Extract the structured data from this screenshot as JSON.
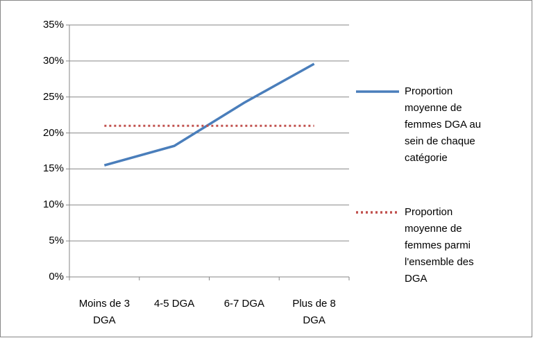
{
  "chart_data": {
    "type": "line",
    "categories": [
      "Moins de 3 DGA",
      "4-5 DGA",
      "6-7 DGA",
      "Plus de 8 DGA"
    ],
    "series": [
      {
        "name": "Proportion moyenne de femmes DGA au sein de chaque catégorie",
        "color": "#4a7ebb",
        "linestyle": "solid",
        "values": [
          15.5,
          18.2,
          24.2,
          29.6
        ]
      },
      {
        "name": "Proportion moyenne de femmes parmi l'ensemble des DGA",
        "color": "#c0504d",
        "linestyle": "dotted",
        "values": [
          21,
          21,
          21,
          21
        ]
      }
    ],
    "ylim": [
      0,
      35
    ],
    "yticks": [
      {
        "value": 0,
        "label": "0%"
      },
      {
        "value": 5,
        "label": "5%"
      },
      {
        "value": 10,
        "label": "10%"
      },
      {
        "value": 15,
        "label": "15%"
      },
      {
        "value": 20,
        "label": "20%"
      },
      {
        "value": 25,
        "label": "25%"
      },
      {
        "value": 30,
        "label": "30%"
      },
      {
        "value": 35,
        "label": "35%"
      }
    ],
    "grid": true,
    "legend": "right"
  }
}
